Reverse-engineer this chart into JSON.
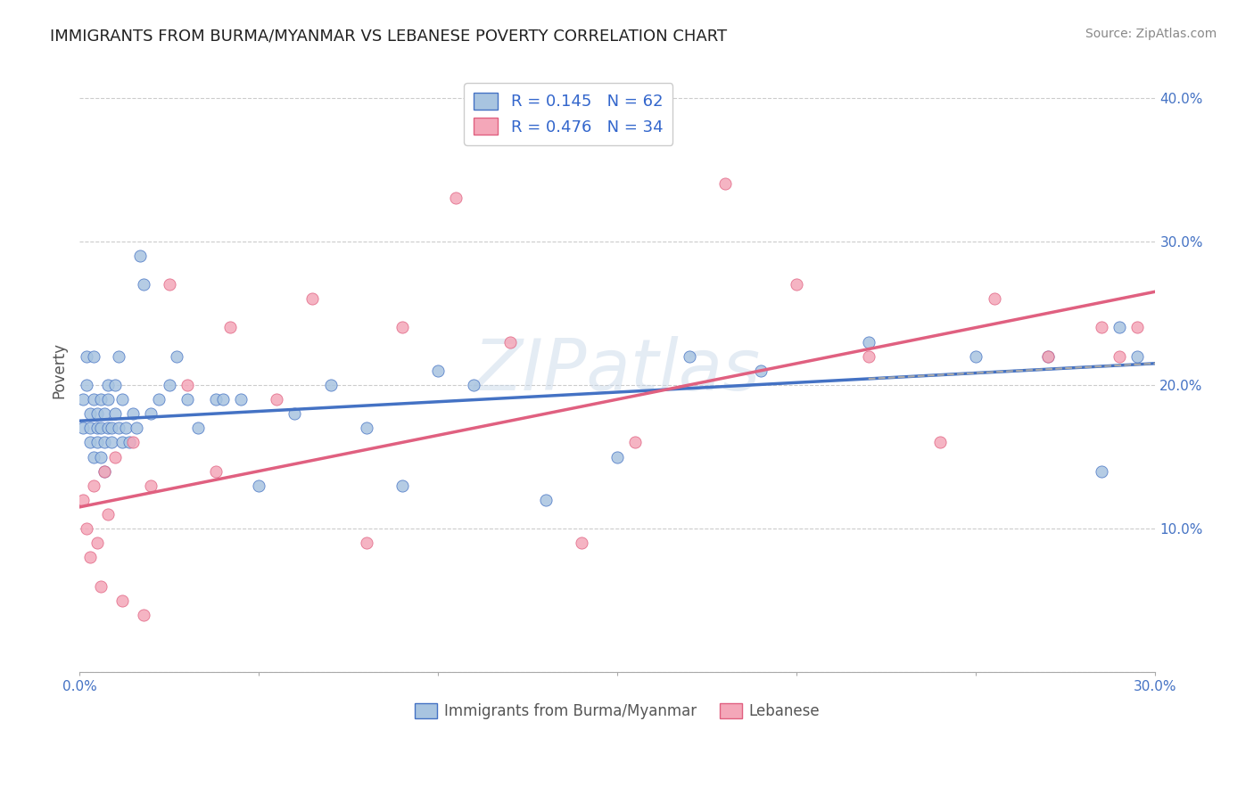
{
  "title": "IMMIGRANTS FROM BURMA/MYANMAR VS LEBANESE POVERTY CORRELATION CHART",
  "source": "Source: ZipAtlas.com",
  "ylabel": "Poverty",
  "xlim": [
    0.0,
    0.3
  ],
  "ylim": [
    0.0,
    0.42
  ],
  "blue_R": 0.145,
  "blue_N": 62,
  "pink_R": 0.476,
  "pink_N": 34,
  "blue_color": "#a8c4e0",
  "pink_color": "#f4a7b9",
  "blue_line_color": "#4472c4",
  "pink_line_color": "#e06080",
  "blue_scatter_x": [
    0.001,
    0.001,
    0.002,
    0.002,
    0.003,
    0.003,
    0.003,
    0.004,
    0.004,
    0.004,
    0.005,
    0.005,
    0.005,
    0.006,
    0.006,
    0.006,
    0.007,
    0.007,
    0.007,
    0.008,
    0.008,
    0.008,
    0.009,
    0.009,
    0.01,
    0.01,
    0.011,
    0.011,
    0.012,
    0.012,
    0.013,
    0.014,
    0.015,
    0.016,
    0.017,
    0.018,
    0.02,
    0.022,
    0.025,
    0.027,
    0.03,
    0.033,
    0.038,
    0.04,
    0.045,
    0.05,
    0.06,
    0.07,
    0.08,
    0.09,
    0.1,
    0.11,
    0.13,
    0.15,
    0.17,
    0.19,
    0.22,
    0.25,
    0.27,
    0.285,
    0.29,
    0.295
  ],
  "blue_scatter_y": [
    0.17,
    0.19,
    0.2,
    0.22,
    0.17,
    0.18,
    0.16,
    0.15,
    0.19,
    0.22,
    0.17,
    0.16,
    0.18,
    0.15,
    0.17,
    0.19,
    0.14,
    0.16,
    0.18,
    0.2,
    0.17,
    0.19,
    0.16,
    0.17,
    0.18,
    0.2,
    0.17,
    0.22,
    0.16,
    0.19,
    0.17,
    0.16,
    0.18,
    0.17,
    0.29,
    0.27,
    0.18,
    0.19,
    0.2,
    0.22,
    0.19,
    0.17,
    0.19,
    0.19,
    0.19,
    0.13,
    0.18,
    0.2,
    0.17,
    0.13,
    0.21,
    0.2,
    0.12,
    0.15,
    0.22,
    0.21,
    0.23,
    0.22,
    0.22,
    0.14,
    0.24,
    0.22
  ],
  "pink_scatter_x": [
    0.001,
    0.002,
    0.003,
    0.004,
    0.005,
    0.006,
    0.007,
    0.008,
    0.01,
    0.012,
    0.015,
    0.018,
    0.02,
    0.025,
    0.03,
    0.038,
    0.042,
    0.055,
    0.065,
    0.08,
    0.09,
    0.105,
    0.12,
    0.14,
    0.155,
    0.18,
    0.2,
    0.22,
    0.24,
    0.255,
    0.27,
    0.285,
    0.29,
    0.295
  ],
  "pink_scatter_y": [
    0.12,
    0.1,
    0.08,
    0.13,
    0.09,
    0.06,
    0.14,
    0.11,
    0.15,
    0.05,
    0.16,
    0.04,
    0.13,
    0.27,
    0.2,
    0.14,
    0.24,
    0.19,
    0.26,
    0.09,
    0.24,
    0.33,
    0.23,
    0.09,
    0.16,
    0.34,
    0.27,
    0.22,
    0.16,
    0.26,
    0.22,
    0.24,
    0.22,
    0.24
  ],
  "blue_line_y0": 0.175,
  "blue_line_y1": 0.215,
  "pink_line_y0": 0.115,
  "pink_line_y1": 0.265
}
